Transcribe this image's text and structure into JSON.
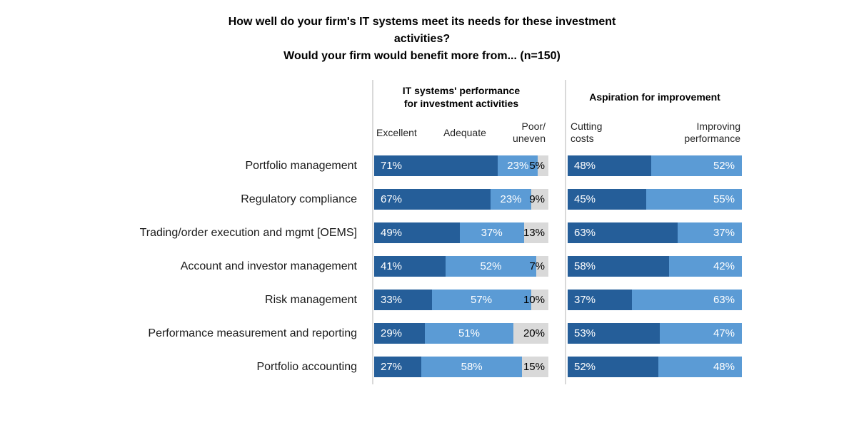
{
  "title": "How well do your firm's IT systems meet its needs for these investment\nactivities?\nWould your firm would benefit more from... (n=150)",
  "chart_data": {
    "type": "bar",
    "subtype": "horizontal_stacked_paired_panels",
    "title": "How well do your firm's IT systems meet its needs for these investment activities? Would your firm would benefit more from... (n=150)",
    "sample_size": "n=150",
    "grid": false,
    "xlim": [
      0,
      100
    ],
    "value_suffix": "%",
    "panels": [
      {
        "title": "IT systems' performance\nfor investment activities",
        "column_headers": [
          "Excellent",
          "Adequate",
          "Poor/\nuneven"
        ]
      },
      {
        "title": "Aspiration for improvement",
        "column_headers": [
          "Cutting\ncosts",
          "Improving\nperformance"
        ]
      }
    ],
    "categories": [
      "Portfolio management",
      "Regulatory compliance",
      "Trading/order execution and mgmt [OEMS]",
      "Account and investor management",
      "Risk management",
      "Performance measurement and reporting",
      "Portfolio accounting"
    ],
    "series": [
      {
        "name": "Excellent",
        "panel": 0,
        "values": [
          71,
          67,
          49,
          41,
          33,
          29,
          27
        ]
      },
      {
        "name": "Adequate",
        "panel": 0,
        "values": [
          23,
          23,
          37,
          52,
          57,
          51,
          58
        ]
      },
      {
        "name": "Poor/uneven",
        "panel": 0,
        "values": [
          5,
          9,
          13,
          7,
          10,
          20,
          15
        ]
      },
      {
        "name": "Cutting costs",
        "panel": 1,
        "values": [
          48,
          45,
          63,
          58,
          37,
          53,
          52
        ]
      },
      {
        "name": "Improving performance",
        "panel": 1,
        "values": [
          52,
          55,
          37,
          42,
          63,
          47,
          48
        ]
      }
    ],
    "colors": {
      "excellent": "#255e99",
      "adequate": "#5b9bd5",
      "poor_uneven": "#d9d9d9",
      "cutting_costs": "#255e99",
      "improving_performance": "#5b9bd5",
      "value_label_on_blue": "#ffffff",
      "value_label_on_gray": "#000000",
      "divider_line": "#d9d9d9",
      "text": "#000000"
    }
  }
}
